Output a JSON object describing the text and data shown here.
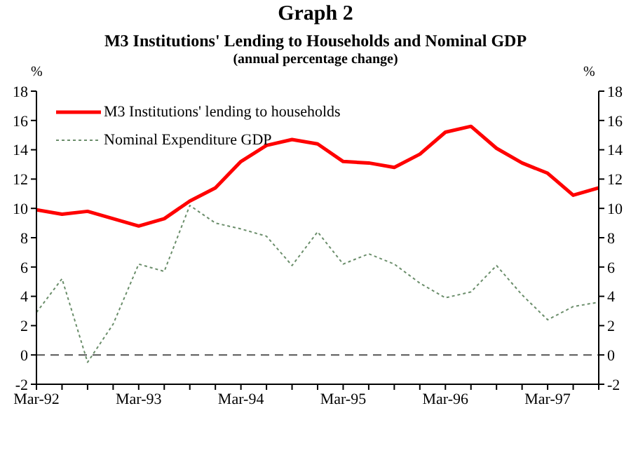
{
  "chart_data": {
    "type": "line",
    "title": "Graph 2",
    "subtitle": "M3 Institutions' Lending to Households and Nominal GDP",
    "annotations": [
      "(annual percentage change)"
    ],
    "ylabel": "%",
    "y2label": "%",
    "categories": [
      "Mar-92",
      null,
      null,
      null,
      "Mar-93",
      null,
      null,
      null,
      "Mar-94",
      null,
      null,
      null,
      "Mar-95",
      null,
      null,
      null,
      "Mar-96",
      null,
      null,
      null,
      "Mar-97",
      null,
      null
    ],
    "series": [
      {
        "name": "M3 Institutions' lending to households",
        "color": "#ff0000",
        "line_style": "solid",
        "values": [
          9.9,
          9.6,
          9.8,
          9.3,
          8.8,
          9.3,
          10.5,
          11.4,
          13.2,
          14.3,
          14.7,
          14.4,
          13.2,
          13.1,
          12.8,
          13.7,
          15.2,
          15.6,
          14.1,
          13.1,
          12.4,
          10.9,
          11.4
        ]
      },
      {
        "name": "Nominal Expenditure GDP",
        "color": "#6b8e6b",
        "line_style": "dotted",
        "values": [
          2.9,
          5.2,
          -0.5,
          2.1,
          6.2,
          5.7,
          10.2,
          9.0,
          8.6,
          8.1,
          6.1,
          8.4,
          6.2,
          6.9,
          6.2,
          4.9,
          3.9,
          4.3,
          6.1,
          4.1,
          2.4,
          3.3,
          3.6
        ]
      }
    ],
    "ylim": [
      -2,
      18
    ],
    "yticks": [
      -2,
      0,
      2,
      4,
      6,
      8,
      10,
      12,
      14,
      16,
      18
    ],
    "y2lim": [
      -2,
      18
    ],
    "y2ticks": [
      -2,
      0,
      2,
      4,
      6,
      8,
      10,
      12,
      14,
      16,
      18
    ],
    "ref_lines": [
      {
        "axis": "y",
        "value": 0,
        "color": "#555555",
        "line_style": "dashed"
      }
    ],
    "grid": false,
    "legend": "top left",
    "marker": "none"
  }
}
